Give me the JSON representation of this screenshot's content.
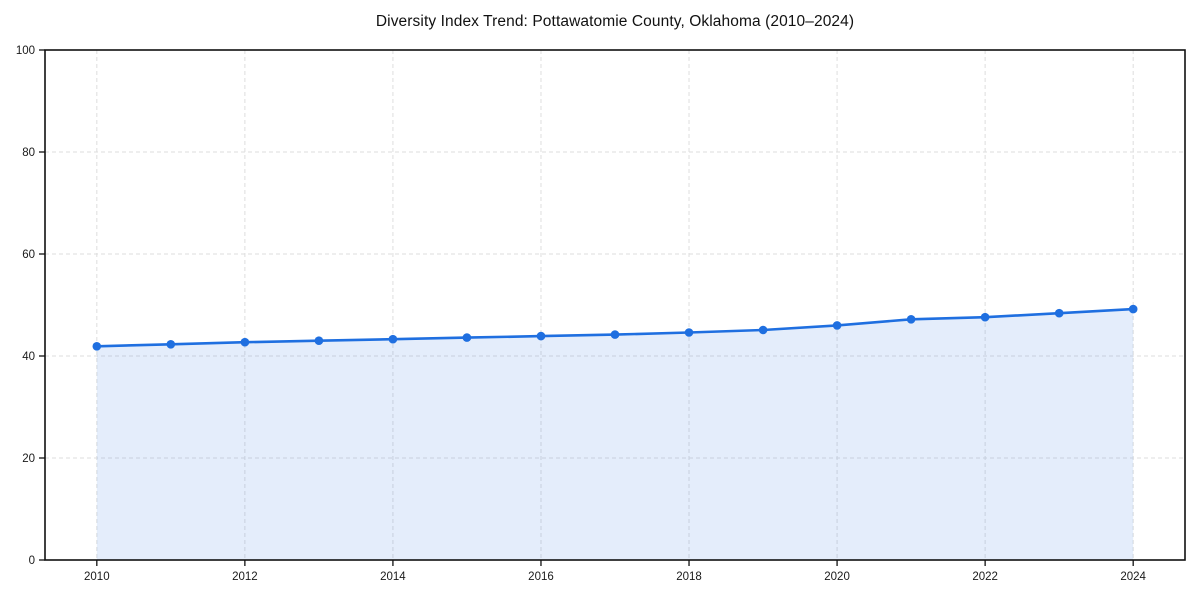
{
  "page": {
    "background": "#ffffff"
  },
  "chart_data": {
    "type": "area",
    "title": "Diversity Index Trend: Pottawatomie County, Oklahoma (2010–2024)",
    "xlabel": "",
    "ylabel": "",
    "x": [
      2010,
      2011,
      2012,
      2013,
      2014,
      2015,
      2016,
      2017,
      2018,
      2019,
      2020,
      2021,
      2022,
      2023,
      2024
    ],
    "series": [
      {
        "name": "Diversity Index",
        "values": [
          41.9,
          42.3,
          42.7,
          43.0,
          43.3,
          43.6,
          43.9,
          44.2,
          44.6,
          45.1,
          46.0,
          47.2,
          47.6,
          48.4,
          49.2
        ]
      }
    ],
    "xticks": [
      2010,
      2012,
      2014,
      2016,
      2018,
      2020,
      2022,
      2024
    ],
    "yticks": [
      0,
      20,
      40,
      60,
      80,
      100
    ],
    "xlim": [
      2009.3,
      2024.7
    ],
    "ylim": [
      0,
      100
    ],
    "grid": true,
    "grid_style": "dashed",
    "legend_position": "none",
    "line_color": "#1f6fe0",
    "marker_color": "#1f6fe0",
    "fill_color": "rgba(31,111,224,0.12)",
    "grid_color": "#dedede",
    "axis_color": "#111111",
    "tick_label_color": "#1a1a1a",
    "title_color": "#111111"
  }
}
